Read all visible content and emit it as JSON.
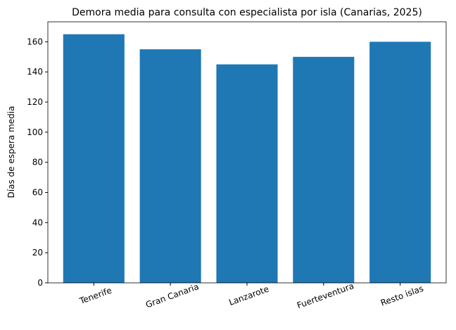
{
  "chart_data": {
    "type": "bar",
    "title": "Demora media para consulta con especialista por isla (Canarias, 2025)",
    "ylabel": "Días de espera media",
    "categories": [
      "Tenerife",
      "Gran Canaria",
      "Lanzarote",
      "Fuerteventura",
      "Resto islas"
    ],
    "values": [
      165,
      155,
      145,
      150,
      160
    ],
    "color": "#1f77b4",
    "ylim": [
      0,
      173.25
    ],
    "yticks": [
      0,
      20,
      40,
      60,
      80,
      100,
      120,
      140,
      160
    ],
    "grid": false
  }
}
